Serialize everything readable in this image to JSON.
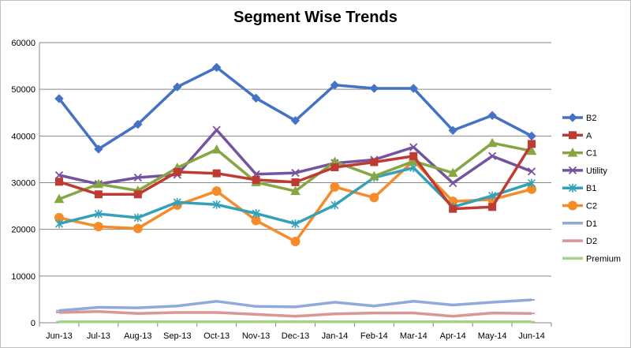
{
  "chart_data": {
    "type": "line",
    "title": "Segment Wise Trends",
    "xlabel": "",
    "ylabel": "",
    "ylim": [
      0,
      60000
    ],
    "yticks": [
      0,
      10000,
      20000,
      30000,
      40000,
      50000,
      60000
    ],
    "grid": "horizontal",
    "legend_position": "right",
    "categories": [
      "Jun-13",
      "Jul-13",
      "Aug-13",
      "Sep-13",
      "Oct-13",
      "Nov-13",
      "Dec-13",
      "Jan-14",
      "Feb-14",
      "Mar-14",
      "Apr-14",
      "May-14",
      "Jun-14"
    ],
    "series": [
      {
        "name": "B2",
        "color": "#4472c4",
        "marker": "diamond",
        "values": [
          48000,
          37200,
          42500,
          50500,
          54700,
          48100,
          43300,
          50900,
          50200,
          50200,
          41200,
          44400,
          40000
        ]
      },
      {
        "name": "A",
        "color": "#be3a33",
        "marker": "square",
        "values": [
          30200,
          27500,
          27500,
          32300,
          32000,
          30600,
          30100,
          33300,
          34400,
          35700,
          24400,
          24800,
          38300
        ]
      },
      {
        "name": "C1",
        "color": "#86a643",
        "marker": "triangle",
        "values": [
          26500,
          29700,
          28300,
          33200,
          37100,
          30100,
          28200,
          34500,
          31400,
          34600,
          32100,
          38500,
          36800
        ]
      },
      {
        "name": "Utility",
        "color": "#7453a0",
        "marker": "x",
        "values": [
          31600,
          29700,
          31100,
          31700,
          41300,
          31800,
          32100,
          34200,
          34900,
          37600,
          29900,
          35700,
          32400
        ]
      },
      {
        "name": "B1",
        "color": "#35a1b8",
        "marker": "star",
        "values": [
          21200,
          23300,
          22500,
          25800,
          25300,
          23400,
          21200,
          25200,
          31100,
          33200,
          24800,
          27200,
          29900
        ]
      },
      {
        "name": "C2",
        "color": "#f68b2a",
        "marker": "circle",
        "values": [
          22500,
          20600,
          20200,
          25200,
          28200,
          21900,
          17400,
          29100,
          26800,
          34700,
          26000,
          26400,
          28600
        ]
      },
      {
        "name": "D1",
        "color": "#92a9dc",
        "marker": "dash",
        "values": [
          2600,
          3300,
          3200,
          3600,
          4600,
          3500,
          3400,
          4400,
          3600,
          4600,
          3800,
          4400,
          4900
        ]
      },
      {
        "name": "D2",
        "color": "#d99694",
        "marker": "dash",
        "values": [
          2200,
          2400,
          2000,
          2200,
          2200,
          1800,
          1400,
          1900,
          2100,
          2100,
          1400,
          2100,
          2000
        ]
      },
      {
        "name": "Premium",
        "color": "#a6d189",
        "marker": "dash",
        "values": [
          200,
          200,
          200,
          200,
          200,
          200,
          200,
          200,
          200,
          200,
          200,
          200,
          200
        ]
      }
    ]
  }
}
